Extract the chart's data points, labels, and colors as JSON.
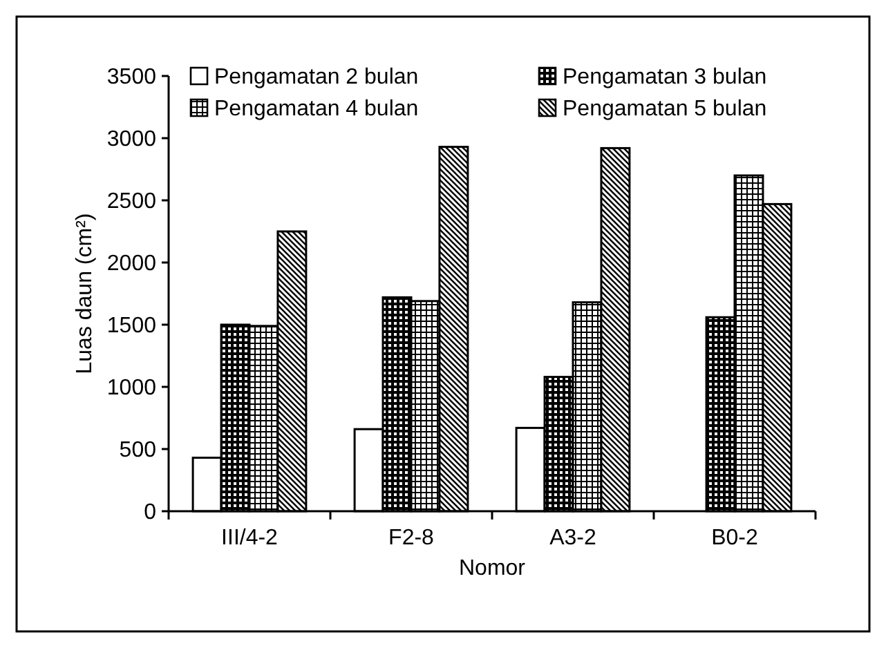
{
  "chart_data": {
    "type": "bar",
    "xlabel": "Nomor",
    "ylabel": "Luas daun (cm²)",
    "categories": [
      "III/4-2",
      "F2-8",
      "A3-2",
      "B0-2"
    ],
    "series": [
      {
        "name": "Pengamatan 2 bulan",
        "color": "#000000",
        "values": [
          430,
          660,
          670,
          null
        ]
      },
      {
        "name": "Pengamatan 3 bulan",
        "color": "#000000",
        "values": [
          1500,
          1720,
          1080,
          1560
        ]
      },
      {
        "name": "Pengamatan 4 bulan",
        "color": "#000000",
        "values": [
          1490,
          1690,
          1680,
          2700
        ]
      },
      {
        "name": "Pengamatan 5 bulan",
        "color": "#000000",
        "values": [
          2250,
          2930,
          2920,
          2470
        ]
      }
    ],
    "ylim": [
      0,
      3500
    ],
    "yticks": [
      0,
      500,
      1000,
      1500,
      2000,
      2500,
      3000,
      3500
    ],
    "grid": false,
    "legend": "top"
  }
}
